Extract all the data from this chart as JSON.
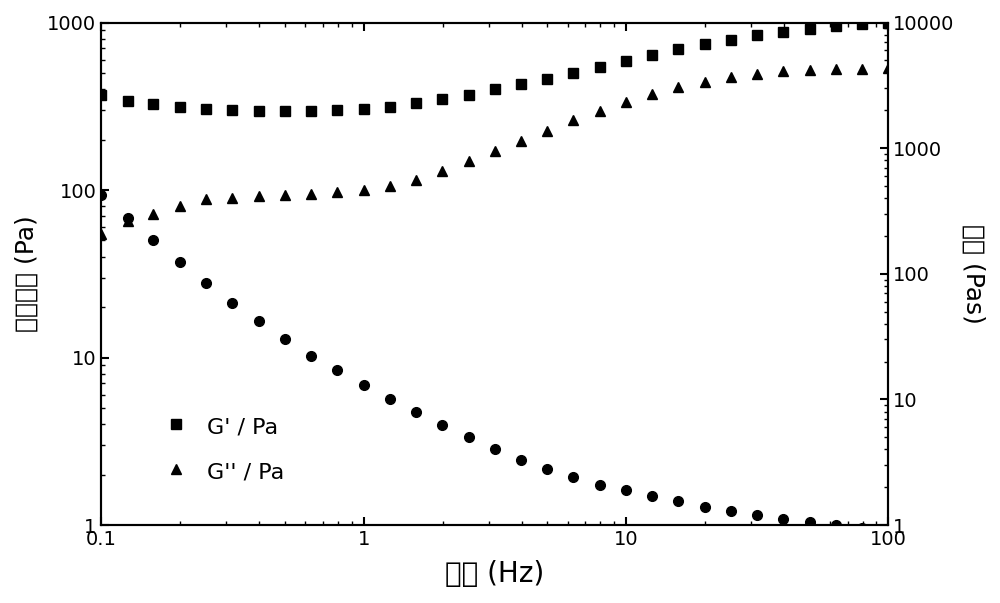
{
  "title": "",
  "xlabel": "频率 (Hz)",
  "ylabel_left": "剪切模量 (Pa)",
  "ylabel_right": "粘度 (Pas)",
  "xlim": [
    0.1,
    100
  ],
  "ylim_left": [
    1,
    1000
  ],
  "ylim_right": [
    1,
    10000
  ],
  "G_prime_x": [
    0.1,
    0.126,
    0.158,
    0.2,
    0.251,
    0.316,
    0.398,
    0.501,
    0.631,
    0.794,
    1.0,
    1.259,
    1.585,
    1.995,
    2.512,
    3.162,
    3.981,
    5.012,
    6.31,
    7.943,
    10.0,
    12.59,
    15.85,
    19.95,
    25.12,
    31.62,
    39.81,
    50.12,
    63.1,
    79.43,
    100.0
  ],
  "G_prime_y": [
    370,
    340,
    325,
    315,
    305,
    300,
    295,
    295,
    295,
    300,
    305,
    315,
    330,
    350,
    370,
    400,
    430,
    460,
    500,
    545,
    590,
    640,
    690,
    740,
    790,
    840,
    880,
    920,
    950,
    975,
    1000
  ],
  "G_dprime_x": [
    0.1,
    0.126,
    0.158,
    0.2,
    0.251,
    0.316,
    0.398,
    0.501,
    0.631,
    0.794,
    1.0,
    1.259,
    1.585,
    1.995,
    2.512,
    3.162,
    3.981,
    5.012,
    6.31,
    7.943,
    10.0,
    12.59,
    15.85,
    19.95,
    25.12,
    31.62,
    39.81,
    50.12,
    63.1,
    79.43,
    100.0
  ],
  "G_dprime_y": [
    55,
    65,
    72,
    80,
    88,
    90,
    92,
    93,
    95,
    97,
    100,
    105,
    115,
    130,
    150,
    170,
    195,
    225,
    260,
    295,
    335,
    375,
    410,
    440,
    470,
    495,
    510,
    520,
    525,
    530,
    535
  ],
  "viscosity_x": [
    0.1,
    0.126,
    0.158,
    0.2,
    0.251,
    0.316,
    0.398,
    0.501,
    0.631,
    0.794,
    1.0,
    1.259,
    1.585,
    1.995,
    2.512,
    3.162,
    3.981,
    5.012,
    6.31,
    7.943,
    10.0,
    12.59,
    15.85,
    19.95,
    25.12,
    31.62,
    39.81,
    50.12,
    63.1,
    79.43,
    100.0
  ],
  "viscosity_y": [
    420,
    280,
    185,
    125,
    85,
    58,
    42,
    30,
    22,
    17,
    13,
    10,
    8.0,
    6.2,
    5.0,
    4.0,
    3.3,
    2.8,
    2.4,
    2.1,
    1.9,
    1.7,
    1.55,
    1.4,
    1.3,
    1.2,
    1.12,
    1.06,
    1.0,
    0.95,
    0.9
  ],
  "legend_labels": [
    "G' / Pa",
    "G'' / Pa"
  ],
  "background_color": "#ffffff",
  "marker_color": "#000000",
  "tick_labelsize": 14,
  "xlabel_fontsize": 20,
  "ylabel_fontsize": 18,
  "legend_fontsize": 16
}
